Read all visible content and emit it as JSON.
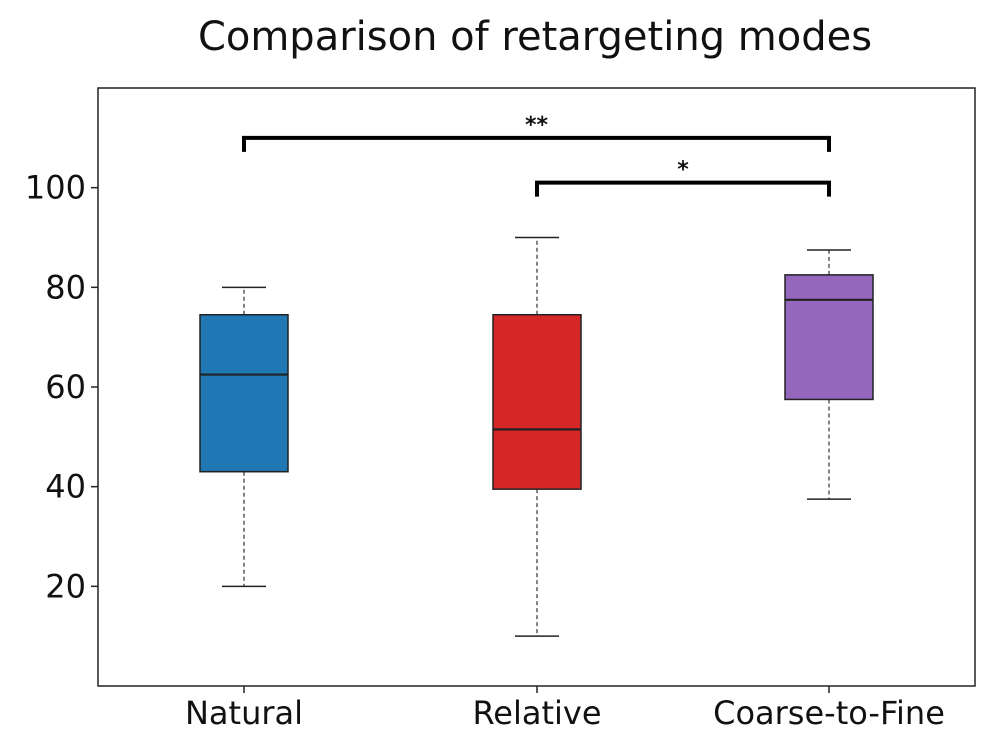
{
  "chart_data": {
    "type": "boxplot",
    "title": "Comparison of retargeting modes",
    "xlabel": "",
    "ylabel": "",
    "ylim": [
      0,
      120
    ],
    "yticks": [
      20,
      40,
      60,
      80,
      100
    ],
    "grid": false,
    "categories": [
      "Natural",
      "Relative",
      "Coarse-to-Fine"
    ],
    "series": [
      {
        "name": "Natural",
        "color": "#1f77b4",
        "whisker_low": 20,
        "q1": 43,
        "median": 62.5,
        "q3": 74.5,
        "whisker_high": 80
      },
      {
        "name": "Relative",
        "color": "#d62728",
        "whisker_low": 10,
        "q1": 39.5,
        "median": 51.5,
        "q3": 74.5,
        "whisker_high": 90
      },
      {
        "name": "Coarse-to-Fine",
        "color": "#9467bd",
        "whisker_low": 37.5,
        "q1": 57.5,
        "median": 77.5,
        "q3": 82.5,
        "whisker_high": 87.5
      }
    ],
    "significance": [
      {
        "from": 0,
        "to": 2,
        "level": 110,
        "label": "**"
      },
      {
        "from": 1,
        "to": 2,
        "level": 101,
        "label": "*"
      }
    ]
  }
}
